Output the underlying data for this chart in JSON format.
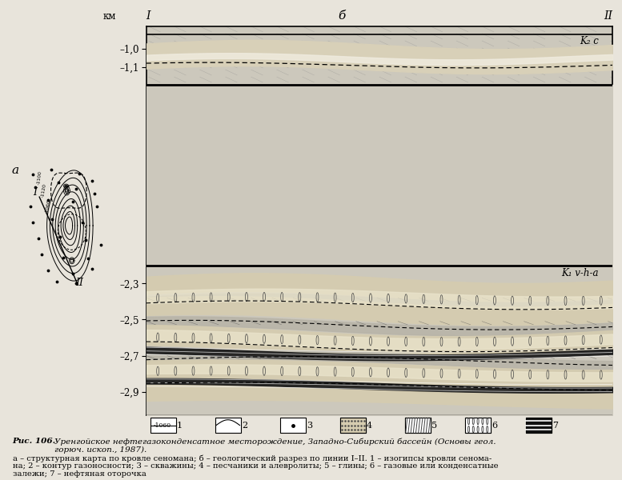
{
  "fig_width": 7.77,
  "fig_height": 6.0,
  "dpi": 100,
  "bg_color": "#e8e4db",
  "label_a": "а",
  "label_b": "б",
  "label_km": "км",
  "label_I": "I",
  "label_II": "II",
  "label_K2c": "K₂ c",
  "label_K1vha": "K₁ v-h-a",
  "ytick_vals": [
    -1.0,
    -1.1,
    -2.3,
    -2.5,
    -2.7,
    -2.9
  ],
  "ytick_labels": [
    "–1,0",
    "–1,1",
    "–2,3",
    "–2,5",
    "–2,7",
    "–2,9"
  ],
  "caption_bold": "Рис. 106.",
  "caption_line1": "  Уренгойское нефтегазоконденсатное месторождение, Западно-Сибирский бассейн (Основы геол.",
  "caption_line2": "горюч. ископ., 1987).",
  "caption_line3": "а – структурная карта по кровле сеномана; б – геологический разрез по линии I–II. 1 – изогипсы кровли сенома-",
  "caption_line4": "на; 2 – контур газоносности; 3 – скважины; 4 – песчаники и алевролиты; 5 – глины; 6 – газовые или конденсатные",
  "caption_line5": "залежи; 7 – нефтяная оторочка"
}
